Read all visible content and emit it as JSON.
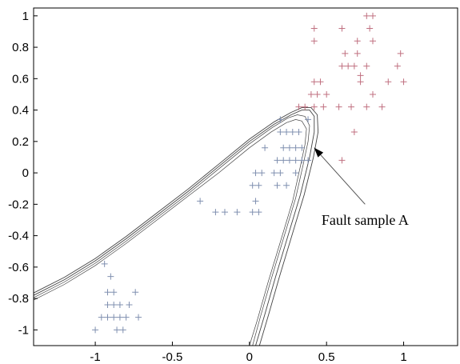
{
  "chart_data": {
    "type": "scatter",
    "title": "",
    "xlabel": "",
    "ylabel": "",
    "xlim": [
      -1.4,
      1.35
    ],
    "ylim": [
      -1.1,
      1.05
    ],
    "grid": false,
    "x_ticks": [
      -1,
      -0.5,
      0,
      0.5,
      1
    ],
    "x_tick_labels": [
      "-1",
      "-0.5",
      "0",
      "0.5",
      "1"
    ],
    "y_ticks": [
      1,
      0.8,
      0.6,
      0.4,
      0.2,
      0,
      -0.2,
      -0.4,
      -0.6,
      -0.8,
      -1
    ],
    "y_tick_labels": [
      "1",
      "0.8",
      "0.6",
      "0.4",
      "0.2",
      "0",
      "-0.2",
      "-0.4",
      "-0.6",
      "-0.8",
      "-1"
    ],
    "series": [
      {
        "marker": "+",
        "color": "#c07080",
        "points": [
          [
            0.42,
            0.92
          ],
          [
            0.42,
            0.84
          ],
          [
            0.6,
            0.92
          ],
          [
            0.76,
            1.0
          ],
          [
            0.8,
            1.0
          ],
          [
            0.78,
            0.92
          ],
          [
            0.8,
            0.84
          ],
          [
            0.7,
            0.84
          ],
          [
            0.62,
            0.76
          ],
          [
            0.7,
            0.76
          ],
          [
            0.6,
            0.68
          ],
          [
            0.64,
            0.68
          ],
          [
            0.68,
            0.68
          ],
          [
            0.72,
            0.62
          ],
          [
            0.72,
            0.58
          ],
          [
            0.76,
            0.68
          ],
          [
            0.98,
            0.76
          ],
          [
            0.96,
            0.68
          ],
          [
            0.9,
            0.58
          ],
          [
            1.0,
            0.58
          ],
          [
            0.42,
            0.58
          ],
          [
            0.46,
            0.58
          ],
          [
            0.4,
            0.5
          ],
          [
            0.44,
            0.5
          ],
          [
            0.5,
            0.5
          ],
          [
            0.32,
            0.42
          ],
          [
            0.36,
            0.42
          ],
          [
            0.42,
            0.42
          ],
          [
            0.48,
            0.42
          ],
          [
            0.58,
            0.42
          ],
          [
            0.66,
            0.42
          ],
          [
            0.76,
            0.42
          ],
          [
            0.86,
            0.42
          ],
          [
            0.8,
            0.5
          ],
          [
            0.68,
            0.26
          ],
          [
            0.6,
            0.08
          ]
        ]
      },
      {
        "marker": "+",
        "color": "#8090b0",
        "points": [
          [
            0.2,
            0.34
          ],
          [
            0.38,
            0.34
          ],
          [
            0.2,
            0.26
          ],
          [
            0.24,
            0.26
          ],
          [
            0.28,
            0.26
          ],
          [
            0.32,
            0.26
          ],
          [
            0.1,
            0.16
          ],
          [
            0.22,
            0.16
          ],
          [
            0.26,
            0.16
          ],
          [
            0.3,
            0.16
          ],
          [
            0.34,
            0.16
          ],
          [
            0.18,
            0.08
          ],
          [
            0.22,
            0.08
          ],
          [
            0.26,
            0.08
          ],
          [
            0.3,
            0.08
          ],
          [
            0.34,
            0.08
          ],
          [
            0.38,
            0.08
          ],
          [
            0.04,
            0.0
          ],
          [
            0.08,
            0.0
          ],
          [
            0.16,
            0.0
          ],
          [
            0.2,
            0.0
          ],
          [
            0.3,
            0.0
          ],
          [
            0.02,
            -0.08
          ],
          [
            0.06,
            -0.08
          ],
          [
            0.18,
            -0.08
          ],
          [
            0.24,
            -0.08
          ],
          [
            -0.32,
            -0.18
          ],
          [
            0.04,
            -0.18
          ],
          [
            -0.22,
            -0.25
          ],
          [
            -0.16,
            -0.25
          ],
          [
            -0.08,
            -0.25
          ],
          [
            0.02,
            -0.25
          ],
          [
            0.06,
            -0.25
          ],
          [
            -0.94,
            -0.58
          ],
          [
            -0.9,
            -0.66
          ],
          [
            -0.92,
            -0.76
          ],
          [
            -0.88,
            -0.76
          ],
          [
            -0.74,
            -0.76
          ],
          [
            -0.92,
            -0.84
          ],
          [
            -0.88,
            -0.84
          ],
          [
            -0.84,
            -0.84
          ],
          [
            -0.78,
            -0.84
          ],
          [
            -0.96,
            -0.92
          ],
          [
            -0.92,
            -0.92
          ],
          [
            -0.88,
            -0.92
          ],
          [
            -0.84,
            -0.92
          ],
          [
            -0.8,
            -0.92
          ],
          [
            -0.72,
            -0.92
          ],
          [
            -1.0,
            -1.0
          ],
          [
            -0.86,
            -1.0
          ],
          [
            -0.82,
            -1.0
          ]
        ]
      }
    ],
    "boundary_curves": [
      [
        [
          -1.4,
          -0.78
        ],
        [
          -1.2,
          -0.68
        ],
        [
          -1.0,
          -0.56
        ],
        [
          -0.8,
          -0.42
        ],
        [
          -0.6,
          -0.27
        ],
        [
          -0.4,
          -0.12
        ],
        [
          -0.2,
          0.04
        ],
        [
          0.0,
          0.2
        ],
        [
          0.16,
          0.31
        ],
        [
          0.27,
          0.37
        ],
        [
          0.34,
          0.4
        ],
        [
          0.39,
          0.4
        ],
        [
          0.42,
          0.36
        ],
        [
          0.42,
          0.26
        ],
        [
          0.39,
          0.1
        ],
        [
          0.33,
          -0.14
        ],
        [
          0.25,
          -0.4
        ],
        [
          0.17,
          -0.66
        ],
        [
          0.1,
          -0.9
        ],
        [
          0.04,
          -1.1
        ]
      ],
      [
        [
          -1.4,
          -0.765
        ],
        [
          -1.2,
          -0.665
        ],
        [
          -1.0,
          -0.545
        ],
        [
          -0.8,
          -0.405
        ],
        [
          -0.6,
          -0.255
        ],
        [
          -0.4,
          -0.105
        ],
        [
          -0.2,
          0.055
        ],
        [
          0.0,
          0.215
        ],
        [
          0.16,
          0.325
        ],
        [
          0.27,
          0.385
        ],
        [
          0.34,
          0.415
        ],
        [
          0.4,
          0.415
        ],
        [
          0.44,
          0.37
        ],
        [
          0.445,
          0.26
        ],
        [
          0.415,
          0.1
        ],
        [
          0.355,
          -0.14
        ],
        [
          0.275,
          -0.4
        ],
        [
          0.195,
          -0.66
        ],
        [
          0.125,
          -0.9
        ],
        [
          0.065,
          -1.1
        ]
      ],
      [
        [
          -1.4,
          -0.795
        ],
        [
          -1.2,
          -0.695
        ],
        [
          -1.0,
          -0.575
        ],
        [
          -0.8,
          -0.435
        ],
        [
          -0.6,
          -0.285
        ],
        [
          -0.4,
          -0.135
        ],
        [
          -0.2,
          0.025
        ],
        [
          0.0,
          0.185
        ],
        [
          0.15,
          0.29
        ],
        [
          0.25,
          0.35
        ],
        [
          0.31,
          0.37
        ],
        [
          0.36,
          0.36
        ],
        [
          0.39,
          0.3
        ],
        [
          0.38,
          0.2
        ],
        [
          0.35,
          0.06
        ],
        [
          0.3,
          -0.16
        ],
        [
          0.22,
          -0.42
        ],
        [
          0.14,
          -0.68
        ],
        [
          0.07,
          -0.92
        ],
        [
          0.02,
          -1.1
        ]
      ],
      [
        [
          -1.4,
          -0.81
        ],
        [
          -1.2,
          -0.71
        ],
        [
          -1.0,
          -0.59
        ],
        [
          -0.8,
          -0.45
        ],
        [
          -0.6,
          -0.3
        ],
        [
          -0.4,
          -0.15
        ],
        [
          -0.2,
          0.0
        ],
        [
          0.0,
          0.16
        ],
        [
          0.14,
          0.26
        ],
        [
          0.24,
          0.32
        ],
        [
          0.3,
          0.34
        ],
        [
          0.34,
          0.33
        ],
        [
          0.37,
          0.28
        ],
        [
          0.36,
          0.18
        ],
        [
          0.33,
          0.04
        ],
        [
          0.28,
          -0.18
        ],
        [
          0.2,
          -0.44
        ],
        [
          0.12,
          -0.7
        ],
        [
          0.05,
          -0.94
        ],
        [
          0.0,
          -1.1
        ]
      ]
    ],
    "annotation": {
      "text": "Fault sample A",
      "target": [
        0.42,
        0.16
      ],
      "text_anchor": [
        0.75,
        -0.33
      ],
      "line_start": [
        0.75,
        -0.2
      ]
    }
  }
}
